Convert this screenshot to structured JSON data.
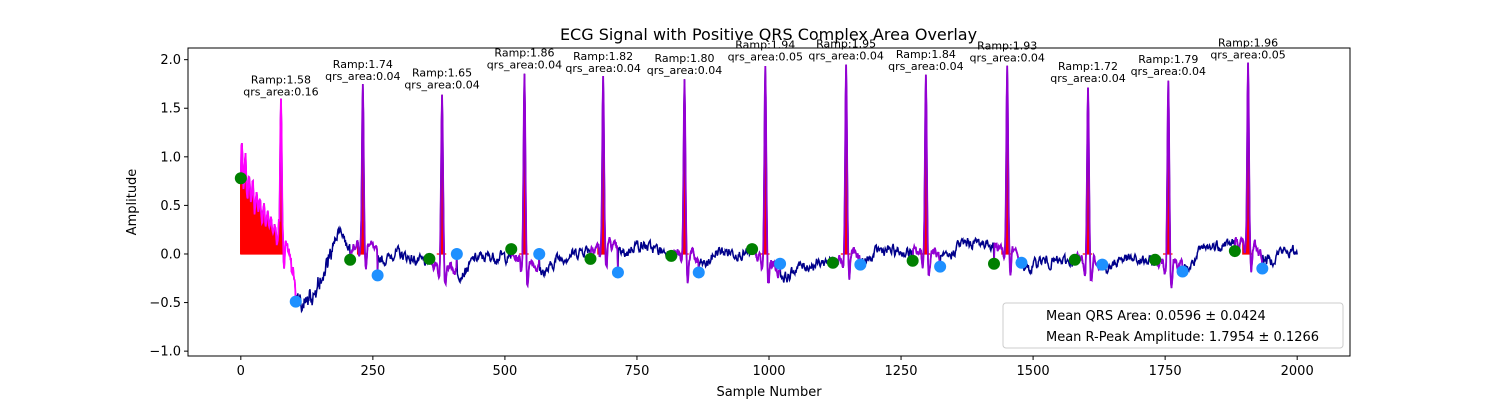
{
  "chart_data": {
    "type": "line",
    "title": "ECG Signal with Positive QRS Complex Area Overlay",
    "xlabel": "Sample Number",
    "ylabel": "Amplitude",
    "xlim": [
      -100,
      2100
    ],
    "ylim": [
      -1.05,
      2.12
    ],
    "xticks": [
      0,
      250,
      500,
      750,
      1000,
      1250,
      1500,
      1750,
      2000
    ],
    "yticks": [
      -1.0,
      -0.5,
      0.0,
      0.5,
      1.0,
      1.5,
      2.0
    ],
    "xtick_labels": [
      "0",
      "250",
      "500",
      "750",
      "1000",
      "1250",
      "1500",
      "1750",
      "2000"
    ],
    "ytick_labels": [
      "−1.0",
      "−0.5",
      "0.0",
      "0.5",
      "1.0",
      "1.5",
      "2.0"
    ],
    "grid": false,
    "colors": {
      "signal": "#00008b",
      "qrs_segment": "#9400d3",
      "qrs_fill": "#ff0000",
      "onset_marker": "#008000",
      "offset_marker": "#1e90ff",
      "noisy_segment": "#ff00ff"
    },
    "beats": [
      {
        "r_x": 76,
        "r_amp": 1.58,
        "onset_x": 0,
        "onset_y": 0.78,
        "offset_x": 104,
        "offset_y": -0.49,
        "label": "Ramp:1.58\nqrs_area:0.16"
      },
      {
        "r_x": 231,
        "r_amp": 1.74,
        "onset_x": 207,
        "onset_y": -0.06,
        "offset_x": 259,
        "offset_y": -0.22,
        "label": "Ramp:1.74\nqrs_area:0.04"
      },
      {
        "r_x": 381,
        "r_amp": 1.65,
        "onset_x": 357,
        "onset_y": -0.05,
        "offset_x": 409,
        "offset_y": 0.0,
        "label": "Ramp:1.65\nqrs_area:0.04"
      },
      {
        "r_x": 537,
        "r_amp": 1.86,
        "onset_x": 512,
        "onset_y": 0.05,
        "offset_x": 565,
        "offset_y": 0.0,
        "label": "Ramp:1.86\nqrs_area:0.04"
      },
      {
        "r_x": 686,
        "r_amp": 1.82,
        "onset_x": 662,
        "onset_y": -0.05,
        "offset_x": 714,
        "offset_y": -0.19,
        "label": "Ramp:1.82\nqrs_area:0.04"
      },
      {
        "r_x": 840,
        "r_amp": 1.8,
        "onset_x": 815,
        "onset_y": -0.02,
        "offset_x": 867,
        "offset_y": -0.19,
        "label": "Ramp:1.80\nqrs_area:0.04"
      },
      {
        "r_x": 993,
        "r_amp": 1.94,
        "onset_x": 968,
        "onset_y": 0.05,
        "offset_x": 1021,
        "offset_y": -0.1,
        "label": "Ramp:1.94\nqrs_area:0.05"
      },
      {
        "r_x": 1146,
        "r_amp": 1.95,
        "onset_x": 1121,
        "onset_y": -0.09,
        "offset_x": 1173,
        "offset_y": -0.11,
        "label": "Ramp:1.95\nqrs_area:0.04"
      },
      {
        "r_x": 1297,
        "r_amp": 1.84,
        "onset_x": 1272,
        "onset_y": -0.07,
        "offset_x": 1324,
        "offset_y": -0.13,
        "label": "Ramp:1.84\nqrs_area:0.04"
      },
      {
        "r_x": 1451,
        "r_amp": 1.93,
        "onset_x": 1426,
        "onset_y": -0.1,
        "offset_x": 1478,
        "offset_y": -0.09,
        "label": "Ramp:1.93\nqrs_area:0.04"
      },
      {
        "r_x": 1604,
        "r_amp": 1.72,
        "onset_x": 1579,
        "onset_y": -0.06,
        "offset_x": 1631,
        "offset_y": -0.11,
        "label": "Ramp:1.72\nqrs_area:0.04"
      },
      {
        "r_x": 1756,
        "r_amp": 1.79,
        "onset_x": 1731,
        "onset_y": -0.06,
        "offset_x": 1783,
        "offset_y": -0.18,
        "label": "Ramp:1.79\nqrs_area:0.04"
      },
      {
        "r_x": 1907,
        "r_amp": 1.96,
        "onset_x": 1882,
        "onset_y": 0.03,
        "offset_x": 1934,
        "offset_y": -0.15,
        "label": "Ramp:1.96\nqrs_area:0.05"
      }
    ],
    "legend": {
      "placement": "lower right",
      "entries": [
        "Mean QRS Area: 0.0596 ± 0.0424",
        "Mean R-Peak Amplitude: 1.7954 ± 0.1266"
      ]
    }
  }
}
